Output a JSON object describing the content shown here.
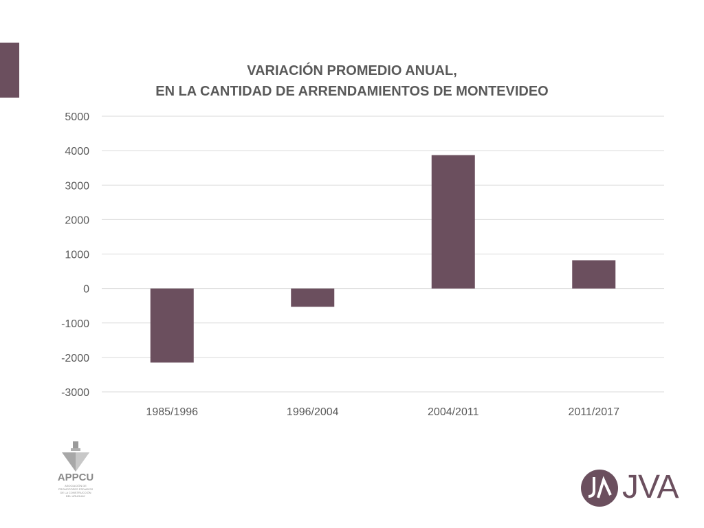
{
  "colors": {
    "bar": "#6b4f5e",
    "grid": "#d9d9d9",
    "text": "#595959",
    "accent": "#6b4f5e"
  },
  "chart_data": {
    "type": "bar",
    "title": "VARIACIÓN PROMEDIO ANUAL,\nEN LA CANTIDAD DE ARRENDAMIENTOS DE MONTEVIDEO",
    "title_lines": [
      "VARIACIÓN PROMEDIO ANUAL,",
      "EN LA CANTIDAD DE ARRENDAMIENTOS DE MONTEVIDEO"
    ],
    "categories": [
      "1985/1996",
      "1996/2004",
      "2004/2011",
      "2011/2017"
    ],
    "values": [
      -2150,
      -530,
      3870,
      820
    ],
    "ylim": [
      -3000,
      5000
    ],
    "yticks": [
      5000,
      4000,
      3000,
      2000,
      1000,
      0,
      -1000,
      -2000,
      -3000
    ],
    "grid": true,
    "legend": "none"
  },
  "logos": {
    "appcu": {
      "name": "APPCU",
      "subtitle": "ASOCIACIÓN DE\nPROMOTORES PRIVADOS\nDE LA CONSTRUCCIÓN\nDEL URUGUAY",
      "icon": "plumb-bob-icon"
    },
    "jva": {
      "name": "JVA",
      "icon": "jva-monogram-icon"
    }
  }
}
